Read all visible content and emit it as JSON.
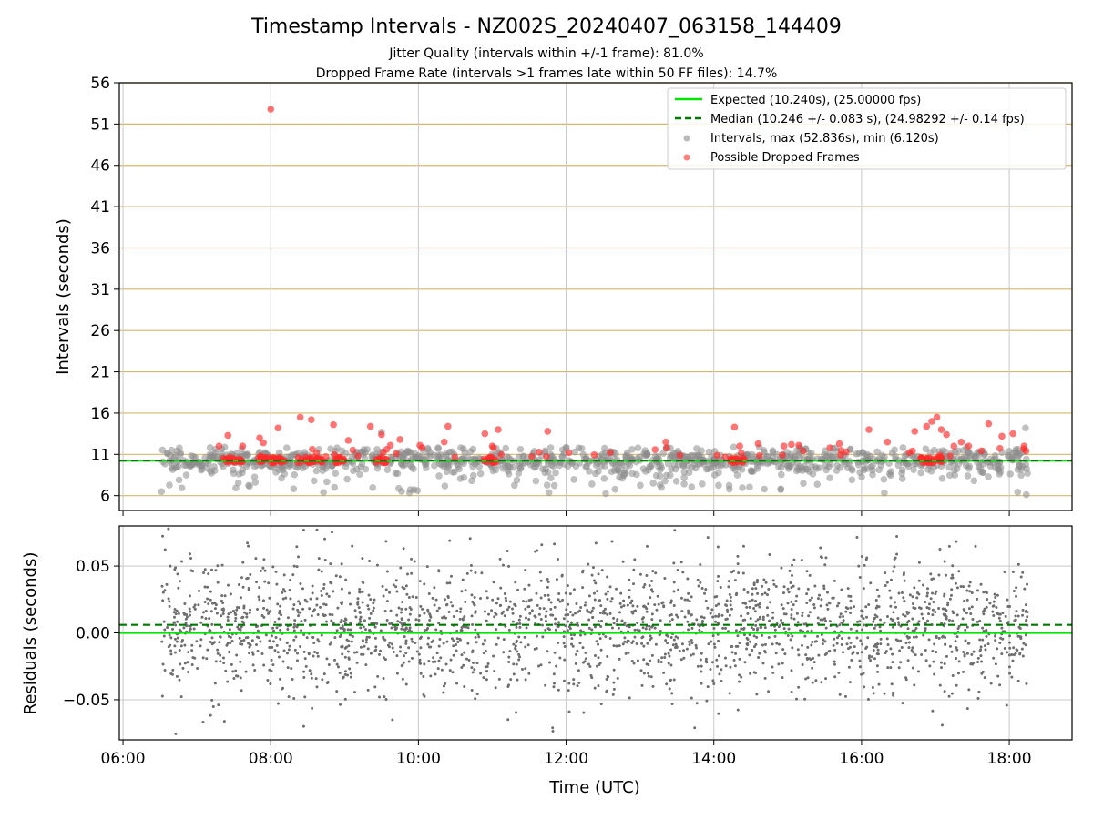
{
  "chart_data": [
    {
      "type": "scatter",
      "title": "Timestamp Intervals - NZ002S_20240407_063158_144409",
      "subtitle_lines": [
        "Jitter Quality (intervals within +/-1 frame): 81.0%",
        "Dropped Frame Rate (intervals >1 frames late within 50 FF files): 14.7%"
      ],
      "xlabel": "",
      "ylabel": "Intervals (seconds)",
      "x_unit": "hours (UTC)",
      "xlim": [
        5.95,
        18.85
      ],
      "ylim": [
        4.2,
        56
      ],
      "yticks": [
        6,
        11,
        16,
        21,
        26,
        31,
        36,
        41,
        46,
        51,
        56
      ],
      "xticks": [
        6,
        8,
        10,
        12,
        14,
        16,
        18
      ],
      "grid": true,
      "legend_position": "top-right",
      "colors": {
        "expected": "#00e600",
        "median": "#007a00",
        "intervals": "#8c8c8c",
        "dropped": "#ff2a2a",
        "hgrid": "#d4b86a",
        "vgrid": "#c8c8c8"
      },
      "expected_line": {
        "label": "Expected (10.240s), (25.00000 fps)",
        "y": 10.24
      },
      "median_line": {
        "label": "Median (10.246 +/- 0.083 s), (24.98292 +/- 0.14 fps)",
        "y": 10.246
      },
      "series": [
        {
          "name": "Intervals, max (52.836s), min (6.120s)",
          "x_range": [
            6.52,
            18.25
          ],
          "y_min": 6.12,
          "y_max": 52.836
        },
        {
          "name": "Possible Dropped Frames",
          "points": [
            [
              8.0,
              52.8
            ],
            [
              8.4,
              15.5
            ],
            [
              8.55,
              15.2
            ],
            [
              7.42,
              13.3
            ],
            [
              7.85,
              13.0
            ],
            [
              8.1,
              14.2
            ],
            [
              8.85,
              14.6
            ],
            [
              9.35,
              14.4
            ],
            [
              9.5,
              13.4
            ],
            [
              9.75,
              12.8
            ],
            [
              10.05,
              11.8
            ],
            [
              10.4,
              14.4
            ],
            [
              10.35,
              12.5
            ],
            [
              10.9,
              13.5
            ],
            [
              11.08,
              14.0
            ],
            [
              11.75,
              13.8
            ],
            [
              13.35,
              12.5
            ],
            [
              14.28,
              14.3
            ],
            [
              14.6,
              12.3
            ],
            [
              14.95,
              12.0
            ],
            [
              15.05,
              12.2
            ],
            [
              15.15,
              12.1
            ],
            [
              15.7,
              12.3
            ],
            [
              16.1,
              14.0
            ],
            [
              16.35,
              12.5
            ],
            [
              16.72,
              13.8
            ],
            [
              16.88,
              14.4
            ],
            [
              16.95,
              15.0
            ],
            [
              17.02,
              15.5
            ],
            [
              17.08,
              14.0
            ],
            [
              17.15,
              13.4
            ],
            [
              17.35,
              12.5
            ],
            [
              17.72,
              14.7
            ],
            [
              17.9,
              13.2
            ],
            [
              18.05,
              13.5
            ],
            [
              18.2,
              12.0
            ],
            [
              7.3,
              12.0
            ],
            [
              7.62,
              12.0
            ],
            [
              7.9,
              12.4
            ],
            [
              8.62,
              11.2
            ],
            [
              9.05,
              12.7
            ],
            [
              9.57,
              11.6
            ],
            [
              9.62,
              12.1
            ],
            [
              10.02,
              12.1
            ],
            [
              11.0,
              12.0
            ],
            [
              14.35,
              12.0
            ],
            [
              17.25,
              12.0
            ],
            [
              17.45,
              12.0
            ]
          ],
          "band_segments": [
            [
              7.35,
              7.62
            ],
            [
              7.82,
              8.2
            ],
            [
              8.35,
              8.72
            ],
            [
              8.85,
              9.02
            ],
            [
              9.42,
              9.58
            ],
            [
              10.88,
              11.05
            ],
            [
              14.22,
              14.42
            ],
            [
              16.8,
              17.15
            ]
          ]
        }
      ]
    },
    {
      "type": "scatter",
      "xlabel": "Time (UTC)",
      "ylabel": "Residuals (seconds)",
      "xlim": [
        5.95,
        18.85
      ],
      "ylim": [
        -0.08,
        0.08
      ],
      "yticks": [
        -0.05,
        0.0,
        0.05
      ],
      "ytick_labels": [
        "−0.05",
        "0.00",
        "0.05"
      ],
      "xticks": [
        6,
        8,
        10,
        12,
        14,
        16,
        18
      ],
      "xtick_labels": [
        "06:00",
        "08:00",
        "10:00",
        "12:00",
        "14:00",
        "16:00",
        "18:00"
      ],
      "grid": true,
      "expected_line": {
        "y": 0.0
      },
      "median_line": {
        "y": 0.006
      },
      "series": [
        {
          "name": "",
          "x_range": [
            6.52,
            18.25
          ],
          "y_mean": 0.005,
          "y_sd": 0.025,
          "n": 2300
        }
      ]
    }
  ]
}
